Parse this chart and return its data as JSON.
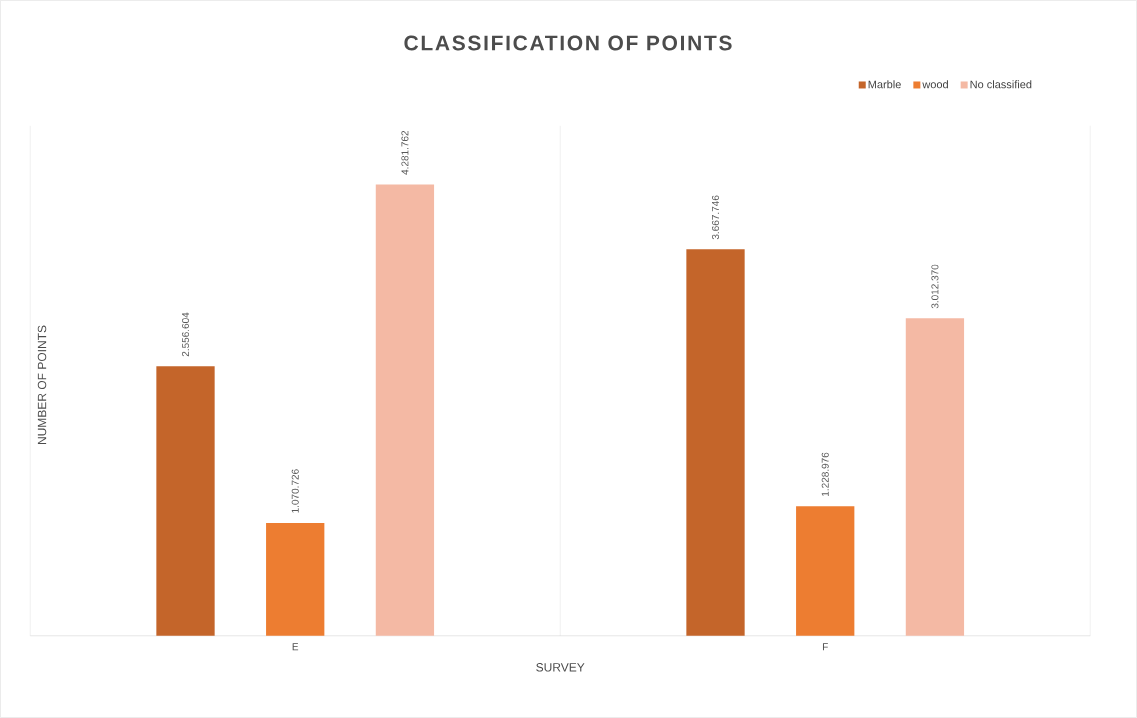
{
  "chart_data": {
    "type": "bar",
    "title": "CLASSIFICATION OF POINTS",
    "xlabel": "SURVEY",
    "ylabel": "NUMBER OF POINTS",
    "categories": [
      "E",
      "F"
    ],
    "series": [
      {
        "name": "Marble",
        "color": "#c4652a",
        "values": [
          2556604,
          3667746
        ],
        "value_labels": [
          "2.556.604",
          "3.667.746"
        ]
      },
      {
        "name": "wood",
        "color": "#ed7d31",
        "values": [
          1070726,
          1228976
        ],
        "value_labels": [
          "1.070.726",
          "1.228.976"
        ]
      },
      {
        "name": "No classified",
        "color": "#f4b9a4",
        "values": [
          4281762,
          3012370
        ],
        "value_labels": [
          "4.281.762",
          "3.012.370"
        ]
      }
    ],
    "legend": "top right",
    "grid": "x"
  }
}
